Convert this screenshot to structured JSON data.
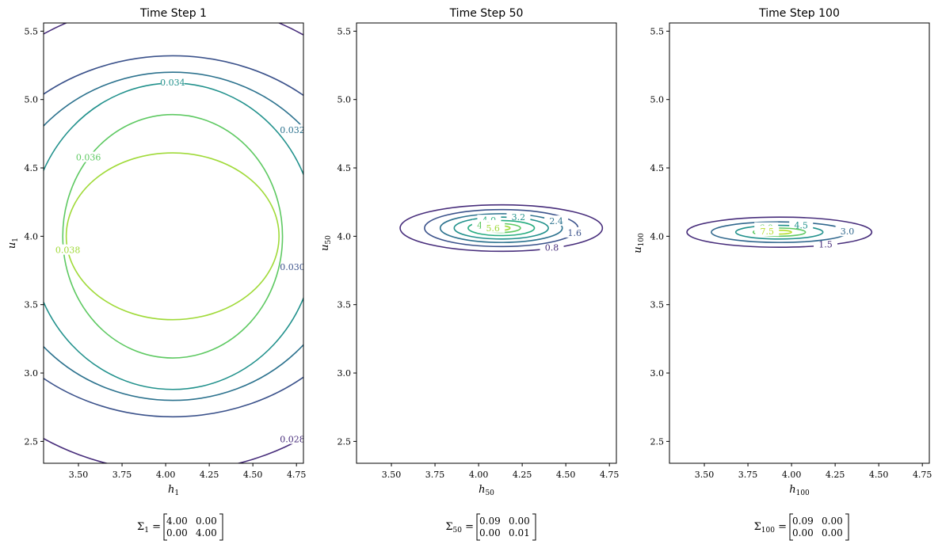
{
  "chart_data": [
    {
      "type": "contour",
      "title": "Time Step 1",
      "xlabel_base": "h",
      "xlabel_sub": "1",
      "ylabel_base": "u",
      "ylabel_sub": "1",
      "xlim": [
        3.3,
        4.79
      ],
      "ylim": [
        2.34,
        5.56
      ],
      "xticks": [
        "3.50",
        "3.75",
        "4.00",
        "4.25",
        "4.50",
        "4.75"
      ],
      "yticks": [
        "2.5",
        "3.0",
        "3.5",
        "4.0",
        "4.5",
        "5.0",
        "5.5"
      ],
      "center": [
        4.04,
        4.0
      ],
      "levels": [
        {
          "level": "0.028",
          "rx": 1.45,
          "ry": 1.72,
          "color": "#472d7b"
        },
        {
          "level": "0.030",
          "rx": 1.2,
          "ry": 1.32,
          "color": "#3b528b"
        },
        {
          "level": "0.032",
          "rx": 1.0,
          "ry": 1.2,
          "color": "#2c728e"
        },
        {
          "level": "0.034",
          "rx": 0.82,
          "ry": 1.12,
          "color": "#21918c"
        },
        {
          "level": "0.036",
          "rx": 0.63,
          "ry": 0.89,
          "color": "#5ec962"
        },
        {
          "level": "0.038",
          "rx": 0.61,
          "ry": 0.61,
          "color": "#a0da39"
        }
      ],
      "covariance_label_base": "Σ",
      "covariance_label_sub": "1",
      "covariance": [
        [
          "4.00",
          "0.00"
        ],
        [
          "0.00",
          "4.00"
        ]
      ]
    },
    {
      "type": "contour",
      "title": "Time Step 50",
      "xlabel_base": "h",
      "xlabel_sub": "50",
      "ylabel_base": "u",
      "ylabel_sub": "50",
      "xlim": [
        3.3,
        4.79
      ],
      "ylim": [
        2.34,
        5.56
      ],
      "xticks": [
        "3.50",
        "3.75",
        "4.00",
        "4.25",
        "4.50",
        "4.75"
      ],
      "yticks": [
        "2.5",
        "3.0",
        "3.5",
        "4.0",
        "4.5",
        "5.0",
        "5.5"
      ],
      "center": [
        4.13,
        4.06
      ],
      "levels": [
        {
          "level": "0.8",
          "rx": 0.58,
          "ry": 0.17,
          "color": "#472d7b"
        },
        {
          "level": "1.6",
          "rx": 0.44,
          "ry": 0.135,
          "color": "#3b528b"
        },
        {
          "level": "2.4",
          "rx": 0.35,
          "ry": 0.105,
          "color": "#2c728e"
        },
        {
          "level": "3.2",
          "rx": 0.27,
          "ry": 0.08,
          "color": "#21918c"
        },
        {
          "level": "4.0",
          "rx": 0.19,
          "ry": 0.055,
          "color": "#27ad81"
        },
        {
          "level": "4.8",
          "rx": 0.11,
          "ry": 0.032,
          "color": "#5ec962"
        },
        {
          "level": "5.6",
          "rx": 0.05,
          "ry": 0.016,
          "color": "#a0da39"
        }
      ],
      "covariance_label_base": "Σ",
      "covariance_label_sub": "50",
      "covariance": [
        [
          "0.09",
          "0.00"
        ],
        [
          "0.00",
          "0.01"
        ]
      ]
    },
    {
      "type": "contour",
      "title": "Time Step 100",
      "xlabel_base": "h",
      "xlabel_sub": "100",
      "ylabel_base": "u",
      "ylabel_sub": "100",
      "xlim": [
        3.3,
        4.79
      ],
      "ylim": [
        2.34,
        5.56
      ],
      "xticks": [
        "3.50",
        "3.75",
        "4.00",
        "4.25",
        "4.50",
        "4.75"
      ],
      "yticks": [
        "2.5",
        "3.0",
        "3.5",
        "4.0",
        "4.5",
        "5.0",
        "5.5"
      ],
      "center": [
        3.93,
        4.03
      ],
      "levels": [
        {
          "level": "1.5",
          "rx": 0.53,
          "ry": 0.11,
          "color": "#472d7b"
        },
        {
          "level": "3.0",
          "rx": 0.39,
          "ry": 0.075,
          "color": "#31688e"
        },
        {
          "level": "4.5",
          "rx": 0.25,
          "ry": 0.05,
          "color": "#21918c"
        },
        {
          "level": "6.0",
          "rx": 0.15,
          "ry": 0.03,
          "color": "#5ec962"
        },
        {
          "level": "7.5",
          "rx": 0.07,
          "ry": 0.014,
          "color": "#b5de2b"
        }
      ],
      "covariance_label_base": "Σ",
      "covariance_label_sub": "100",
      "covariance": [
        [
          "0.09",
          "0.00"
        ],
        [
          "0.00",
          "0.00"
        ]
      ]
    }
  ]
}
